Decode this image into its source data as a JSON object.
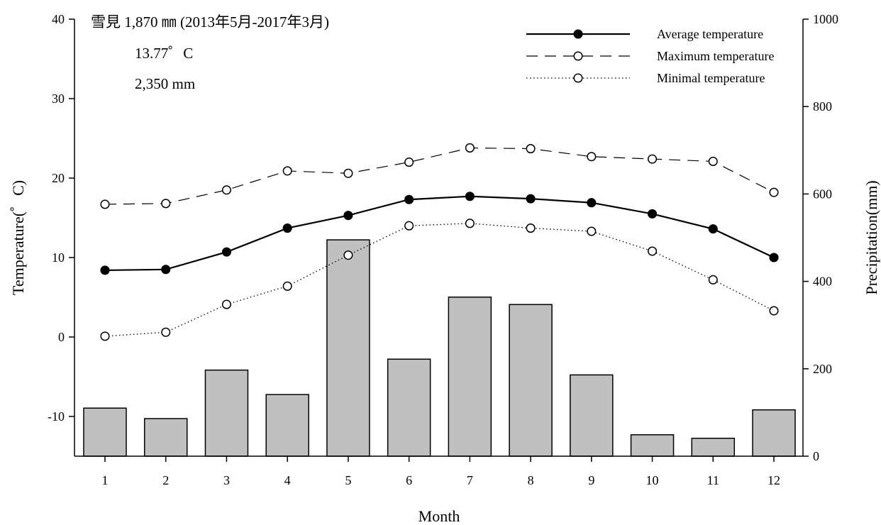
{
  "annotations": {
    "station": "雪見 1,870 ㎜ (2013年5月-2017年3月)",
    "mean_temp": "13.77゜C",
    "precip_total": "2,350 mm"
  },
  "chart_data": {
    "type": "bar+line",
    "categories": [
      "1",
      "2",
      "3",
      "4",
      "5",
      "6",
      "7",
      "8",
      "9",
      "10",
      "11",
      "12"
    ],
    "xlabel": "Month",
    "ylabel_left": "Temperature(゜C)",
    "ylabel_right": "Precipitation(mm)",
    "ylim_left": [
      -15,
      40
    ],
    "yticks_left": [
      -10,
      0,
      10,
      20,
      30,
      40
    ],
    "ylim_right": [
      0,
      1000
    ],
    "yticks_right": [
      0,
      200,
      400,
      600,
      800,
      1000
    ],
    "grid": false,
    "legend_position": "top-right",
    "bars": {
      "axis": "right",
      "color": "#c0c0c0",
      "values": [
        110,
        86,
        197,
        141,
        495,
        222,
        364,
        347,
        186,
        49,
        41,
        106
      ]
    },
    "series": [
      {
        "name": "Average temperature",
        "marker": "filled-circle",
        "line": "solid",
        "values": [
          8.4,
          8.5,
          10.7,
          13.7,
          15.3,
          17.3,
          17.7,
          17.4,
          16.9,
          15.5,
          13.6,
          10.0
        ]
      },
      {
        "name": "Maximum temperature",
        "marker": "open-circle",
        "line": "dashed",
        "values": [
          16.7,
          16.8,
          18.5,
          20.9,
          20.6,
          22.0,
          23.8,
          23.7,
          22.7,
          22.4,
          22.1,
          18.2
        ]
      },
      {
        "name": "Minimal temperature",
        "marker": "open-circle",
        "line": "dotted",
        "values": [
          0.1,
          0.6,
          4.1,
          6.4,
          10.3,
          14.0,
          14.3,
          13.7,
          13.3,
          10.8,
          7.2,
          3.3
        ]
      }
    ]
  }
}
